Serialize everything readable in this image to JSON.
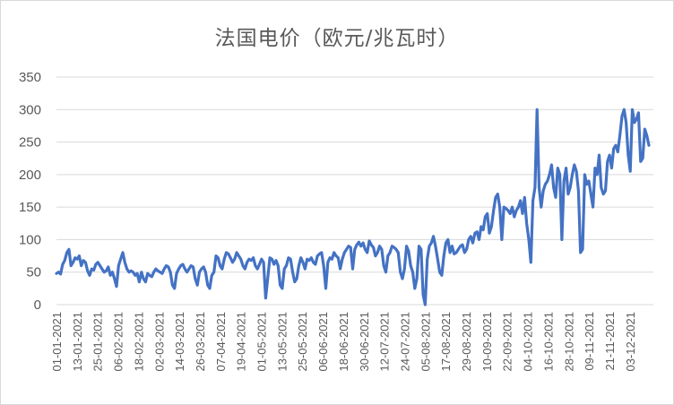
{
  "chart_data": {
    "type": "line",
    "title": "法国电价（欧元/兆瓦时）",
    "xlabel": "",
    "ylabel": "",
    "ylim": [
      0,
      350
    ],
    "yticks": [
      0,
      50,
      100,
      150,
      200,
      250,
      300,
      350
    ],
    "grid": true,
    "legend": "none",
    "line_color": "#4472C4",
    "x_tick_labels": [
      "01-01-2021",
      "13-01-2021",
      "25-01-2021",
      "06-02-2021",
      "18-02-2021",
      "02-03-2021",
      "14-03-2021",
      "26-03-2021",
      "07-04-2021",
      "19-04-2021",
      "01-05-2021",
      "13-05-2021",
      "25-05-2021",
      "06-06-2021",
      "18-06-2021",
      "30-06-2021",
      "12-07-2021",
      "24-07-2021",
      "05-08-2021",
      "17-08-2021",
      "29-08-2021",
      "10-09-2021",
      "22-09-2021",
      "04-10-2021",
      "16-10-2021",
      "28-10-2021",
      "09-11-2021",
      "21-11-2021",
      "03-12-2021"
    ],
    "series": [
      {
        "values": [
          48,
          50,
          47,
          62,
          68,
          80,
          85,
          60,
          65,
          72,
          70,
          75,
          60,
          68,
          65,
          52,
          45,
          55,
          53,
          62,
          65,
          60,
          55,
          50,
          52,
          58,
          45,
          50,
          40,
          28,
          60,
          70,
          80,
          65,
          55,
          50,
          52,
          50,
          45,
          48,
          35,
          50,
          40,
          35,
          48,
          45,
          43,
          50,
          55,
          52,
          50,
          48,
          55,
          60,
          58,
          50,
          30,
          25,
          48,
          55,
          60,
          62,
          55,
          50,
          55,
          60,
          58,
          40,
          30,
          50,
          55,
          58,
          50,
          30,
          25,
          45,
          50,
          75,
          72,
          60,
          55,
          70,
          80,
          78,
          72,
          65,
          70,
          80,
          75,
          70,
          60,
          55,
          65,
          70,
          68,
          72,
          60,
          55,
          62,
          70,
          65,
          10,
          40,
          72,
          70,
          62,
          68,
          60,
          30,
          25,
          55,
          60,
          72,
          70,
          50,
          35,
          40,
          60,
          72,
          65,
          55,
          70,
          68,
          72,
          65,
          62,
          75,
          78,
          80,
          60,
          25,
          65,
          72,
          70,
          80,
          75,
          72,
          55,
          70,
          80,
          85,
          90,
          88,
          55,
          85,
          92,
          96,
          90,
          95,
          85,
          80,
          98,
          92,
          88,
          75,
          80,
          90,
          85,
          60,
          50,
          75,
          80,
          90,
          88,
          85,
          80,
          50,
          40,
          55,
          90,
          82,
          60,
          50,
          25,
          40,
          90,
          85,
          15,
          0,
          70,
          90,
          95,
          105,
          90,
          70,
          50,
          45,
          75,
          95,
          100,
          80,
          90,
          78,
          80,
          85,
          90,
          92,
          80,
          85,
          100,
          105,
          95,
          110,
          112,
          100,
          120,
          115,
          135,
          140,
          110,
          120,
          145,
          165,
          170,
          150,
          100,
          150,
          148,
          145,
          140,
          150,
          135,
          145,
          150,
          160,
          140,
          165,
          125,
          100,
          65,
          160,
          180,
          300,
          180,
          150,
          175,
          185,
          190,
          200,
          215,
          180,
          165,
          210,
          200,
          100,
          190,
          210,
          170,
          180,
          200,
          215,
          205,
          175,
          80,
          85,
          200,
          185,
          190,
          170,
          150,
          210,
          200,
          230,
          180,
          170,
          175,
          220,
          230,
          210,
          240,
          245,
          235,
          260,
          290,
          300,
          280,
          230,
          205,
          300,
          280,
          285,
          295,
          220,
          225,
          270,
          260,
          245
        ]
      }
    ]
  }
}
